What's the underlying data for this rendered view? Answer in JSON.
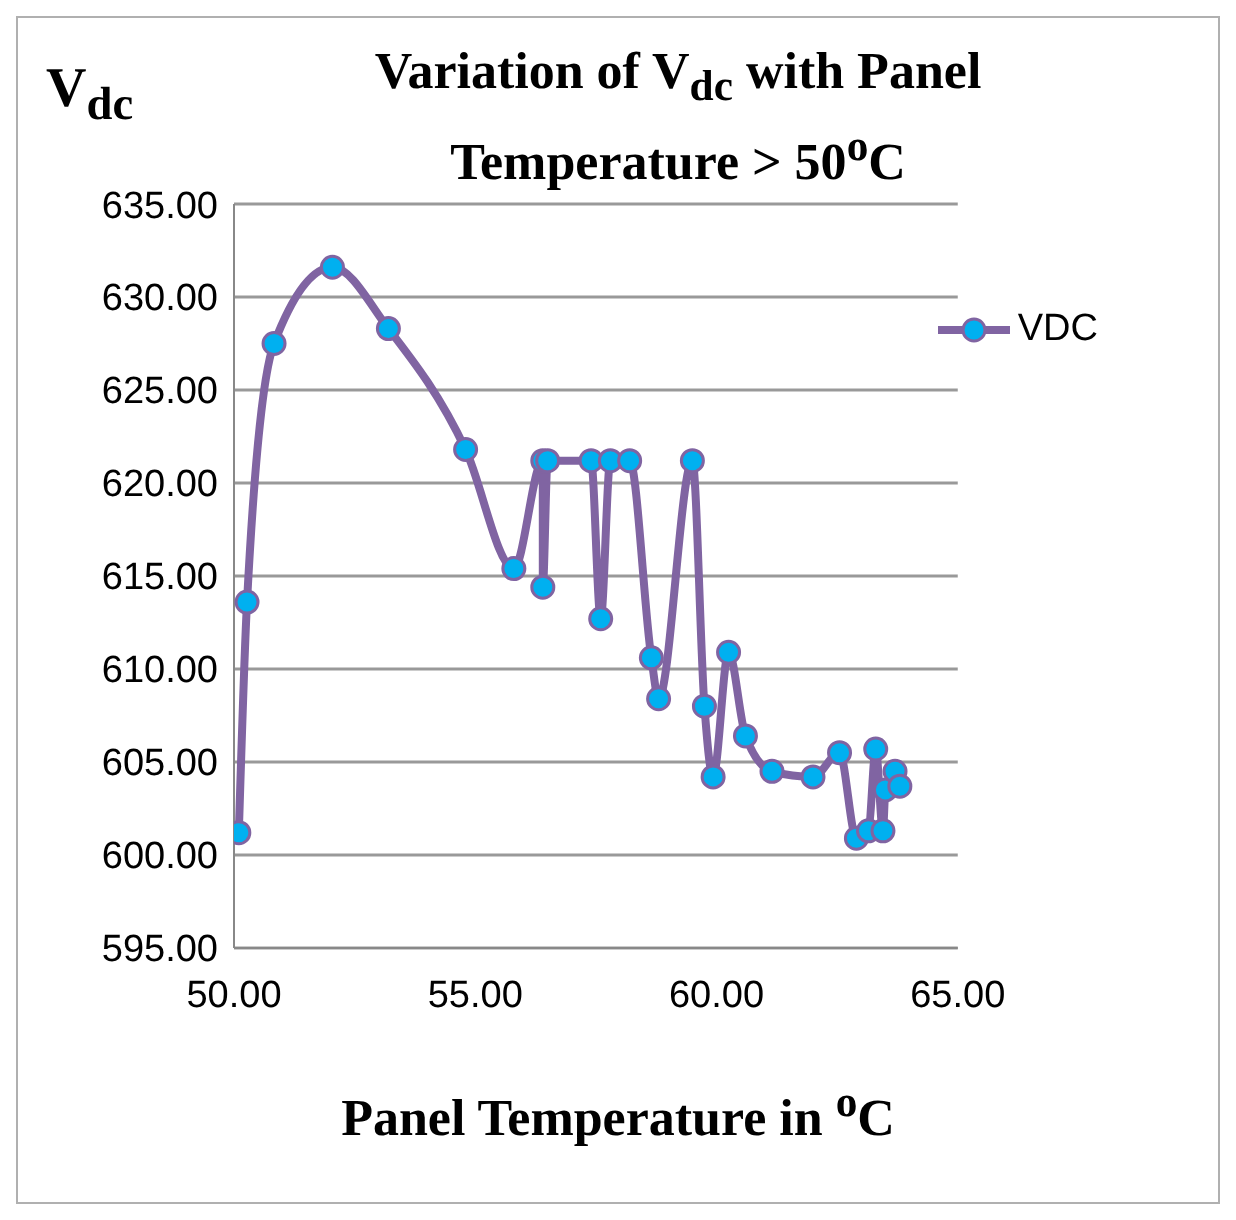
{
  "chart_data": {
    "type": "line",
    "title": "Variation of V$_{dc}$ with Panel Temperature > 50$^{o}$C",
    "ylabel": "V$_{dc}$",
    "xlabel": "Panel Temperature in $^{o}$C",
    "x": [
      50.1,
      50.27,
      50.83,
      52.04,
      53.2,
      54.8,
      55.8,
      56.4,
      56.4,
      56.5,
      57.4,
      57.6,
      57.8,
      58.2,
      58.65,
      58.8,
      59.5,
      59.75,
      59.93,
      60.25,
      60.6,
      61.15,
      62.0,
      62.55,
      62.9,
      63.15,
      63.3,
      63.45,
      63.5,
      63.7,
      63.8
    ],
    "series": [
      {
        "name": "VDC",
        "color": "#8064a2",
        "values": [
          601.2,
          613.6,
          627.5,
          631.6,
          628.3,
          621.8,
          615.4,
          621.2,
          614.4,
          621.2,
          621.2,
          612.7,
          621.2,
          621.2,
          610.6,
          608.4,
          621.2,
          608.0,
          604.2,
          610.9,
          606.4,
          604.5,
          604.2,
          605.5,
          600.9,
          601.3,
          605.7,
          601.3,
          603.5,
          604.5,
          603.7
        ]
      }
    ],
    "marker": "circle",
    "line_style": "solid",
    "grid": "y",
    "legend": "top right",
    "xlim": [
      50,
      65
    ],
    "xticks": [
      {
        "value": 50,
        "label": "50.00"
      },
      {
        "value": 55,
        "label": "55.00"
      },
      {
        "value": 60,
        "label": "60.00"
      },
      {
        "value": 65,
        "label": "65.00"
      }
    ],
    "ylim": [
      595,
      635
    ],
    "yticks": [
      {
        "value": 595,
        "label": "595.00"
      },
      {
        "value": 600,
        "label": "600.00"
      },
      {
        "value": 605,
        "label": "605.00"
      },
      {
        "value": 610,
        "label": "610.00"
      },
      {
        "value": 615,
        "label": "615.00"
      },
      {
        "value": 620,
        "label": "620.00"
      },
      {
        "value": 625,
        "label": "625.00"
      },
      {
        "value": 630,
        "label": "630.00"
      },
      {
        "value": 635,
        "label": "635.00"
      }
    ]
  }
}
